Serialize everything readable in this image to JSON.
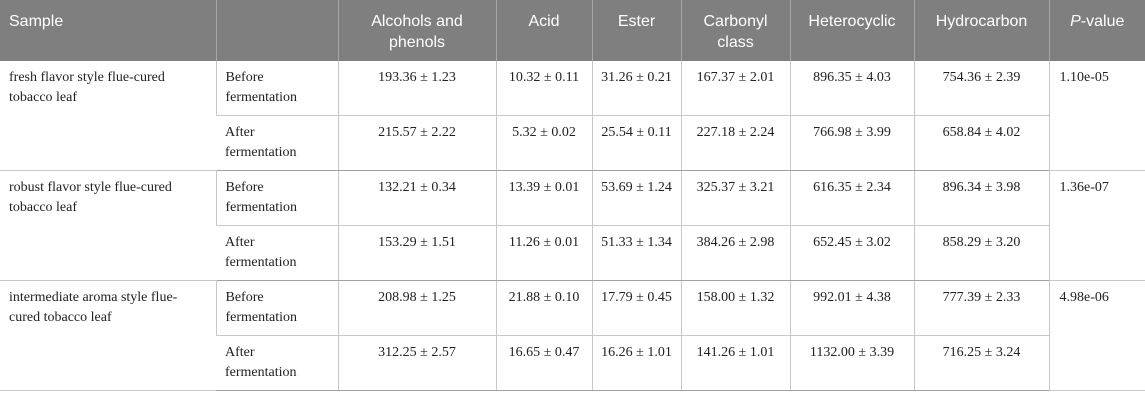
{
  "table": {
    "headers": {
      "sample": "Sample",
      "stage": "",
      "alcohols": "Alcohols and phenols",
      "acid": "Acid",
      "ester": "Ester",
      "carbonyl": "Carbonyl class",
      "heterocyclic": "Heterocyclic",
      "hydrocarbon": "Hydrocarbon",
      "pvalue_p": "P",
      "pvalue_suffix": "-value"
    },
    "groups": [
      {
        "sample": "fresh flavor style flue-cured tobacco leaf",
        "pvalue": "1.10e-05",
        "rows": [
          {
            "stage": "Before fermentation",
            "alcohols": "193.36 ± 1.23",
            "acid": "10.32 ± 0.11",
            "ester": "31.26 ± 0.21",
            "carbonyl": "167.37 ± 2.01",
            "heterocyclic": "896.35 ± 4.03",
            "hydrocarbon": "754.36 ± 2.39"
          },
          {
            "stage": "After fermentation",
            "alcohols": "215.57 ± 2.22",
            "acid": "5.32 ± 0.02",
            "ester": "25.54 ± 0.11",
            "carbonyl": "227.18 ± 2.24",
            "heterocyclic": "766.98 ± 3.99",
            "hydrocarbon": "658.84 ± 4.02"
          }
        ]
      },
      {
        "sample": "robust flavor style flue-cured tobacco leaf",
        "pvalue": "1.36e-07",
        "rows": [
          {
            "stage": "Before fermentation",
            "alcohols": "132.21 ± 0.34",
            "acid": "13.39 ± 0.01",
            "ester": "53.69 ± 1.24",
            "carbonyl": "325.37 ± 3.21",
            "heterocyclic": "616.35 ± 2.34",
            "hydrocarbon": "896.34 ± 3.98"
          },
          {
            "stage": "After fermentation",
            "alcohols": "153.29 ± 1.51",
            "acid": "11.26 ± 0.01",
            "ester": "51.33 ± 1.34",
            "carbonyl": "384.26 ± 2.98",
            "heterocyclic": "652.45 ± 3.02",
            "hydrocarbon": "858.29 ± 3.20"
          }
        ]
      },
      {
        "sample": "intermediate aroma style flue-cured tobacco leaf",
        "pvalue": "4.98e-06",
        "rows": [
          {
            "stage": "Before fermentation",
            "alcohols": "208.98 ± 1.25",
            "acid": "21.88 ± 0.10",
            "ester": "17.79 ± 0.45",
            "carbonyl": "158.00 ± 1.32",
            "heterocyclic": "992.01 ± 4.38",
            "hydrocarbon": "777.39 ± 2.33"
          },
          {
            "stage": "After fermentation",
            "alcohols": "312.25 ± 2.57",
            "acid": "16.65 ± 0.47",
            "ester": "16.26 ± 1.01",
            "carbonyl": "141.26 ± 1.01",
            "heterocyclic": "1132.00 ± 3.39",
            "hydrocarbon": "716.25 ± 3.24"
          }
        ]
      }
    ]
  }
}
